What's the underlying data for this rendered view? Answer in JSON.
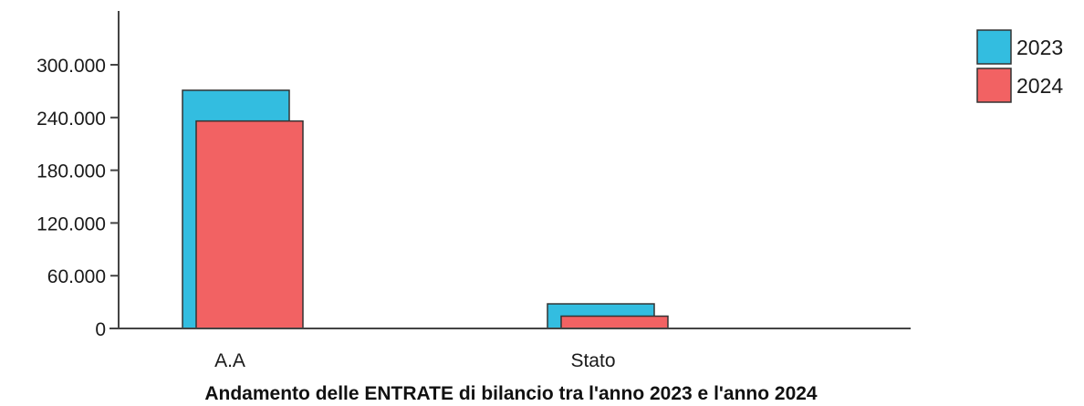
{
  "chart_data": {
    "type": "bar",
    "title": "Andamento delle ENTRATE di bilancio tra l'anno 2023 e l'anno 2024",
    "xlabel": "",
    "ylabel": "",
    "categories": [
      "A.A",
      "Stato"
    ],
    "series": [
      {
        "name": "2023",
        "values": [
          271000,
          28000
        ],
        "color": "#33bde0"
      },
      {
        "name": "2024",
        "values": [
          236000,
          14000
        ],
        "color": "#f26263"
      }
    ],
    "ylim": [
      0,
      360000
    ],
    "y_ticks": [
      {
        "value": 0,
        "label": "0"
      },
      {
        "value": 60000,
        "label": "60.000"
      },
      {
        "value": 120000,
        "label": "120.000"
      },
      {
        "value": 180000,
        "label": "180.000"
      },
      {
        "value": 240000,
        "label": "240.000"
      },
      {
        "value": 300000,
        "label": "300.000"
      }
    ],
    "grid": false,
    "legend_position": "top-right"
  }
}
